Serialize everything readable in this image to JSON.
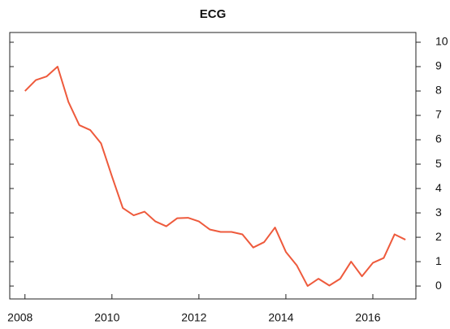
{
  "chart_data": {
    "type": "line",
    "title": "ECG",
    "x": [
      2008,
      2008.25,
      2008.5,
      2008.75,
      2009,
      2009.25,
      2009.5,
      2009.75,
      2010,
      2010.25,
      2010.5,
      2010.75,
      2011,
      2011.25,
      2011.5,
      2011.75,
      2012,
      2012.25,
      2012.5,
      2012.75,
      2013,
      2013.25,
      2013.5,
      2013.75,
      2014,
      2014.25,
      2014.5,
      2014.75,
      2015,
      2015.25,
      2015.5,
      2015.75,
      2016,
      2016.25,
      2016.5,
      2016.75
    ],
    "series": [
      {
        "color": "#ee5a3c",
        "values": [
          8.0,
          8.45,
          8.6,
          9.0,
          7.55,
          6.6,
          6.4,
          5.85,
          4.5,
          3.2,
          2.9,
          3.05,
          2.65,
          2.45,
          2.78,
          2.8,
          2.65,
          2.32,
          2.22,
          2.22,
          2.12,
          1.58,
          1.8,
          2.4,
          1.4,
          0.85,
          0.0,
          0.3,
          0.02,
          0.3,
          1.0,
          0.4,
          0.95,
          1.15,
          2.12,
          1.9
        ]
      }
    ],
    "xlim": [
      2007.65,
      2016.99
    ],
    "xticks": [
      2008,
      2010,
      2012,
      2014,
      2016
    ],
    "ylim": [
      -0.53,
      10.4
    ],
    "yticks": [
      0,
      1,
      2,
      3,
      4,
      5,
      6,
      7,
      8,
      9,
      10
    ]
  }
}
